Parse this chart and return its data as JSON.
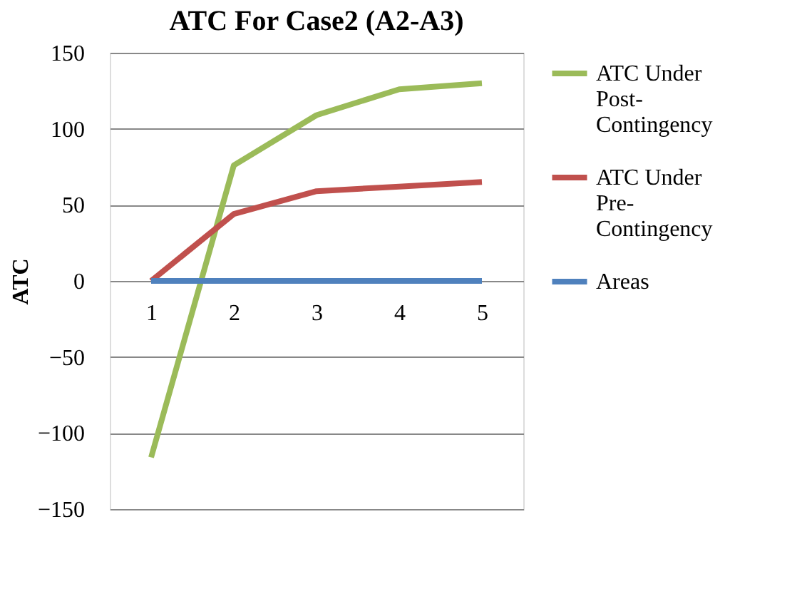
{
  "chart_data": {
    "type": "line",
    "title": "ATC For Case2 (A2-A3)",
    "ylabel": "ATC",
    "categories": [
      "1",
      "2",
      "3",
      "4",
      "5"
    ],
    "series": [
      {
        "name": "ATC Under Post-Contingency",
        "color": "#9bbb59",
        "values": [
          -116,
          76,
          109,
          126,
          130
        ]
      },
      {
        "name": "ATC Under Pre-Contingency",
        "color": "#c0504d",
        "values": [
          0,
          44,
          59,
          62,
          65
        ]
      },
      {
        "name": "Areas",
        "color": "#4f81bd",
        "values": [
          0,
          0,
          0,
          0,
          0
        ]
      }
    ],
    "ylim": [
      -150,
      150
    ],
    "yticks": [
      -150,
      -100,
      -50,
      0,
      50,
      100,
      150
    ],
    "grid": "y",
    "legend": "right",
    "marker": "none",
    "line_style": "solid"
  }
}
